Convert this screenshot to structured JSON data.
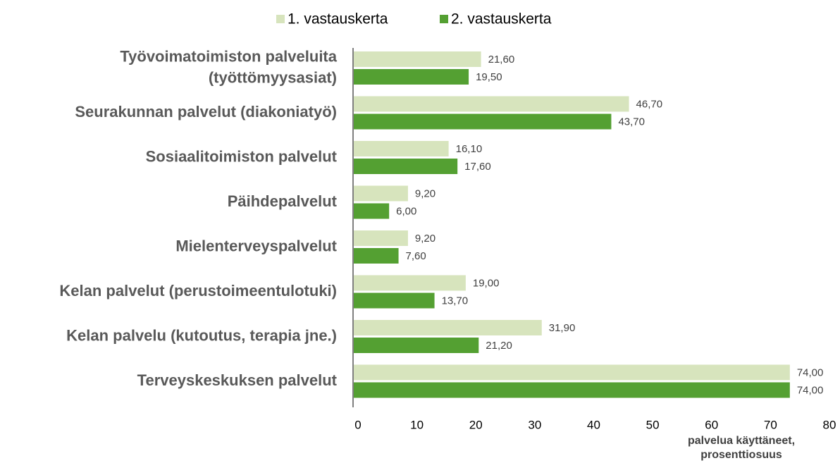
{
  "chart_data": {
    "type": "hbar",
    "categories": [
      [
        "Työvoimatoimiston palveluita",
        "(työttömyysasiat)"
      ],
      "Seurakunnan palvelut (diakoniatyö)",
      "Sosiaalitoimiston palvelut",
      "Päihdepalvelut",
      "Mielenterveyspalvelut",
      "Kelan palvelut (perustoimeentulotuki)",
      "Kelan palvelu (kutoutus, terapia jne.)",
      "Terveyskeskuksen palvelut"
    ],
    "series": [
      {
        "name": "1. vastauskerta",
        "color": "#d7e4bd",
        "values": [
          21.6,
          46.7,
          16.1,
          9.2,
          9.2,
          19.0,
          31.9,
          74.0
        ],
        "value_labels": [
          "21,60",
          "46,70",
          "16,10",
          "9,20",
          "9,20",
          "19,00",
          "31,90",
          "74,00"
        ]
      },
      {
        "name": "2. vastauskerta",
        "color": "#54a032",
        "values": [
          19.5,
          43.7,
          17.6,
          6.0,
          7.6,
          13.7,
          21.2,
          74.0
        ],
        "value_labels": [
          "19,50",
          "43,70",
          "17,60",
          "6,00",
          "7,60",
          "13,70",
          "21,20",
          "74,00"
        ]
      }
    ],
    "xlim": [
      0,
      80
    ],
    "xticks": [
      0,
      10,
      20,
      30,
      40,
      50,
      60,
      70,
      80
    ],
    "xlabel": [
      "palvelua käyttäneet,",
      "prosenttiosuus"
    ],
    "legend": "top"
  }
}
